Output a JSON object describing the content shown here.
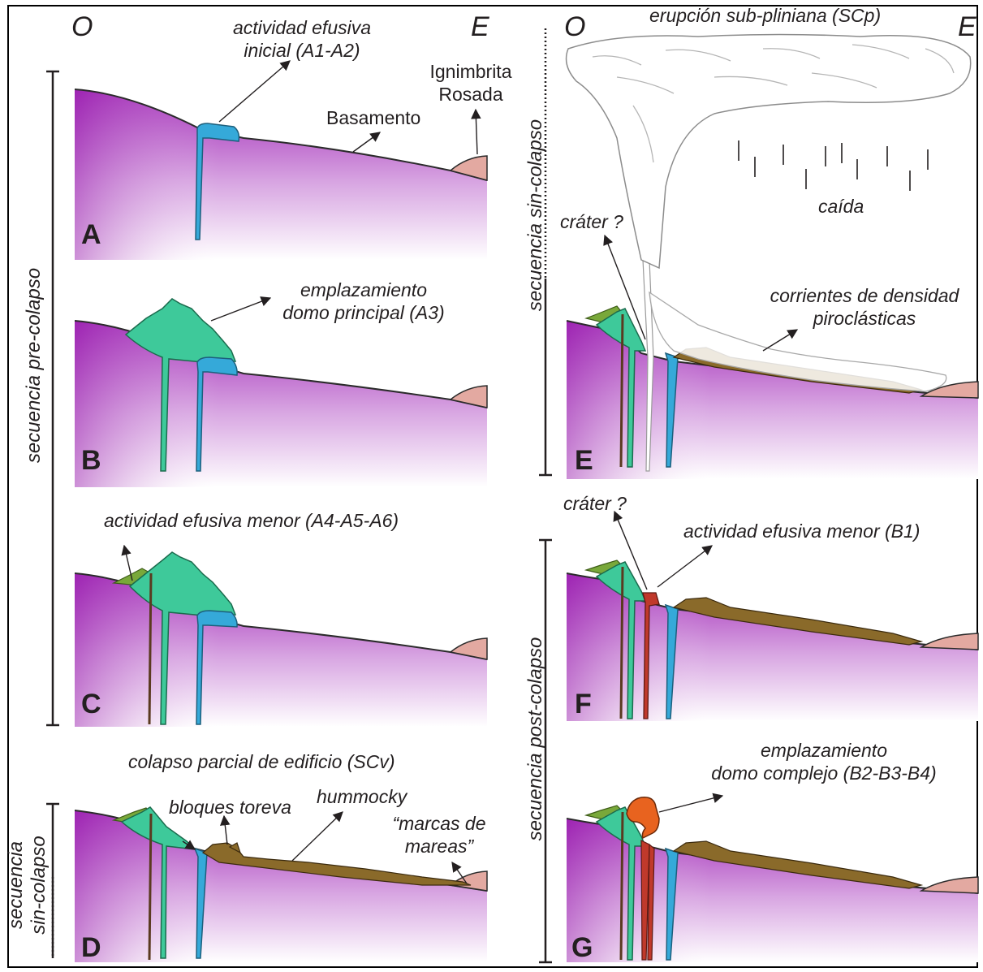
{
  "orientation": {
    "west": "O",
    "east": "E"
  },
  "panels": {
    "A": {
      "letter": "A",
      "label_effusive": "actividad efusiva\ninicial (A1-A2)",
      "label_ignimbrite": "Ignimbrita\nRosada",
      "label_basement": "Basamento"
    },
    "B": {
      "letter": "B",
      "label_dome": "emplazamiento\ndomo principal (A3)"
    },
    "C": {
      "letter": "C",
      "label_minor": "actividad efusiva menor (A4-A5-A6)"
    },
    "D": {
      "letter": "D",
      "title": "colapso parcial de edificio (SCv)",
      "label_toreva": "bloques toreva",
      "label_hummocky": "hummocky",
      "label_tides": "“marcas de\nmareas”"
    },
    "E": {
      "letter": "E",
      "title": "erupción sub-pliniana (SCp)",
      "label_fall": "caída",
      "label_crater": "cráter ?",
      "label_pdc": "corrientes de densidad\npiroclásticas"
    },
    "F": {
      "letter": "F",
      "label_crater": "cráter ?",
      "label_minor": "actividad efusiva menor (B1)"
    },
    "G": {
      "letter": "G",
      "label_dome": "emplazamiento\ndomo complejo (B2-B3-B4)"
    }
  },
  "sequences": {
    "pre_collapse": "secuencia pre-colapso",
    "syn_collapse_left": "secuencia\nsin-colapso",
    "syn_collapse_right": "secuencia sin-colapso",
    "post_collapse": "secuencia post-colapso"
  },
  "colors": {
    "basement_top": "#a026b6",
    "basement_bottom": "#ffffff",
    "dome_green": "#3ec99a",
    "early_blue": "#35a9d9",
    "minor_olive": "#79a83a",
    "debris_brown": "#8a6a2a",
    "ignimbrite_pink": "#e3a9a1",
    "late_orange": "#e8631f",
    "red_dyke": "#c0392b"
  }
}
